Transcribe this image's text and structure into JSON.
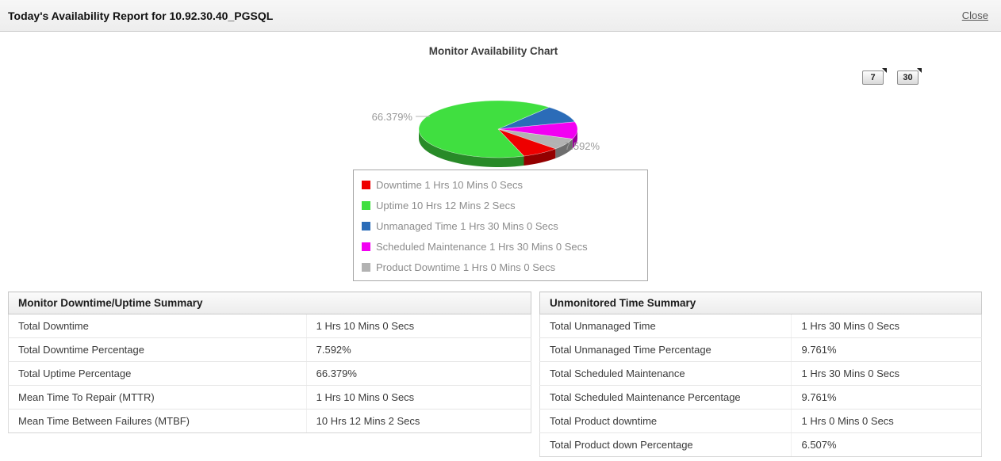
{
  "header": {
    "title": "Today's Availability Report for 10.92.30.40_PGSQL",
    "close_label": "Close"
  },
  "chart": {
    "title": "Monitor Availability Chart",
    "period_buttons": [
      "7",
      "30"
    ]
  },
  "chart_data": {
    "type": "pie",
    "title": "Monitor Availability Chart",
    "slices": [
      {
        "name": "downtime",
        "label": "Downtime 1 Hrs 10 Mins 0 Secs",
        "value": 7.592,
        "color": "#ee0000"
      },
      {
        "name": "uptime",
        "label": "Uptime 10 Hrs 12 Mins 2 Secs",
        "value": 66.379,
        "color": "#40df40"
      },
      {
        "name": "unmanaged-time",
        "label": "Unmanaged Time 1 Hrs 30 Mins 0 Secs",
        "value": 9.761,
        "color": "#2b6cb8"
      },
      {
        "name": "scheduled-maintenance",
        "label": "Scheduled Maintenance 1 Hrs 30 Mins 0 Secs",
        "value": 9.761,
        "color": "#f200f2"
      },
      {
        "name": "product-downtime",
        "label": "Product Downtime 1 Hrs 0 Mins 0 Secs",
        "value": 6.507,
        "color": "#b2b2b2"
      }
    ],
    "callouts": {
      "left": "66.379%",
      "right": "7.592%"
    },
    "legend_position": "below"
  },
  "tables": {
    "left": {
      "title": "Monitor Downtime/Uptime Summary",
      "rows": [
        [
          "Total Downtime",
          "1 Hrs 10 Mins 0 Secs"
        ],
        [
          "Total Downtime Percentage",
          "7.592%"
        ],
        [
          "Total Uptime Percentage",
          "66.379%"
        ],
        [
          "Mean Time To Repair (MTTR)",
          "1 Hrs 10 Mins 0 Secs"
        ],
        [
          "Mean Time Between Failures (MTBF)",
          "10 Hrs 12 Mins 2 Secs"
        ]
      ]
    },
    "right": {
      "title": "Unmonitored Time Summary",
      "rows": [
        [
          "Total Unmanaged Time",
          "1 Hrs 30 Mins 0 Secs"
        ],
        [
          "Total Unmanaged Time Percentage",
          "9.761%"
        ],
        [
          "Total Scheduled Maintenance",
          "1 Hrs 30 Mins 0 Secs"
        ],
        [
          "Total Scheduled Maintenance Percentage",
          "9.761%"
        ],
        [
          "Total Product downtime",
          "1 Hrs 0 Mins 0 Secs"
        ],
        [
          "Total Product down Percentage",
          "6.507%"
        ]
      ]
    }
  }
}
